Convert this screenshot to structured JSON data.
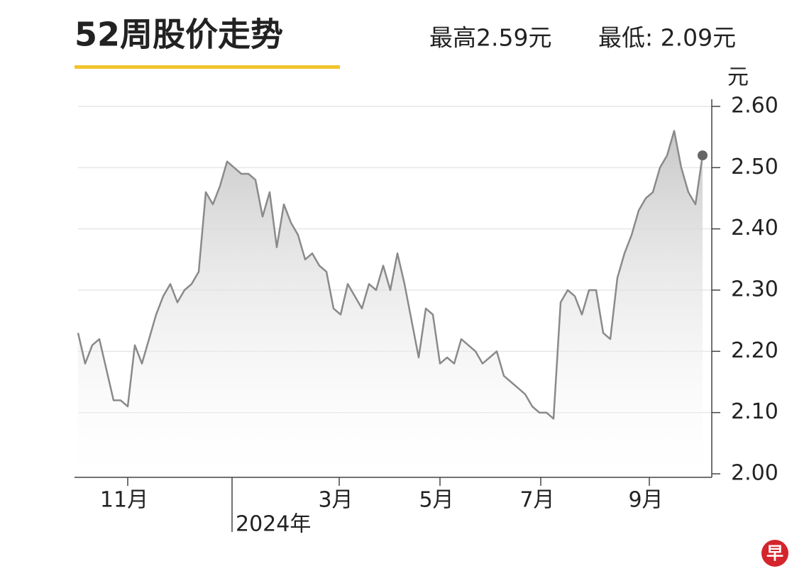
{
  "chart_data": {
    "type": "line",
    "title": "52周股价走势",
    "annotations": [
      "最高2.59元",
      "最低: 2.09元"
    ],
    "ylabel": "元",
    "color": "#8a8a8a",
    "end_dot_color": "#666666",
    "grid": true,
    "ylim": [
      2.0,
      2.6
    ],
    "yticks": [
      {
        "value": 2.0,
        "label": "2.00"
      },
      {
        "value": 2.1,
        "label": "2.10"
      },
      {
        "value": 2.2,
        "label": "2.20"
      },
      {
        "value": 2.3,
        "label": "2.30"
      },
      {
        "value": 2.4,
        "label": "2.40"
      },
      {
        "value": 2.5,
        "label": "2.50"
      },
      {
        "value": 2.6,
        "label": "2.60"
      }
    ],
    "xlim": [
      0,
      88
    ],
    "xticks": [
      {
        "value": 7,
        "label": "11月"
      },
      {
        "value": 36.8,
        "label": "3月"
      },
      {
        "value": 51,
        "label": "5月"
      },
      {
        "value": 65.2,
        "label": "7月"
      },
      {
        "value": 80.5,
        "label": "9月"
      }
    ],
    "year_marker": {
      "value": 21.7,
      "label": "2024年"
    },
    "values": [
      2.23,
      2.18,
      2.21,
      2.22,
      2.17,
      2.12,
      2.12,
      2.11,
      2.21,
      2.18,
      2.22,
      2.26,
      2.29,
      2.31,
      2.28,
      2.3,
      2.31,
      2.33,
      2.46,
      2.44,
      2.47,
      2.51,
      2.5,
      2.49,
      2.49,
      2.48,
      2.42,
      2.46,
      2.37,
      2.44,
      2.41,
      2.39,
      2.35,
      2.36,
      2.34,
      2.33,
      2.27,
      2.26,
      2.31,
      2.29,
      2.27,
      2.31,
      2.3,
      2.34,
      2.3,
      2.36,
      2.31,
      2.25,
      2.19,
      2.27,
      2.26,
      2.18,
      2.19,
      2.18,
      2.22,
      2.21,
      2.2,
      2.18,
      2.19,
      2.2,
      2.16,
      2.15,
      2.14,
      2.13,
      2.11,
      2.1,
      2.1,
      2.09,
      2.28,
      2.3,
      2.29,
      2.26,
      2.3,
      2.3,
      2.23,
      2.22,
      2.32,
      2.36,
      2.39,
      2.43,
      2.45,
      2.46,
      2.5,
      2.52,
      2.56,
      2.5,
      2.46,
      2.44,
      2.52
    ]
  },
  "logo": "早"
}
